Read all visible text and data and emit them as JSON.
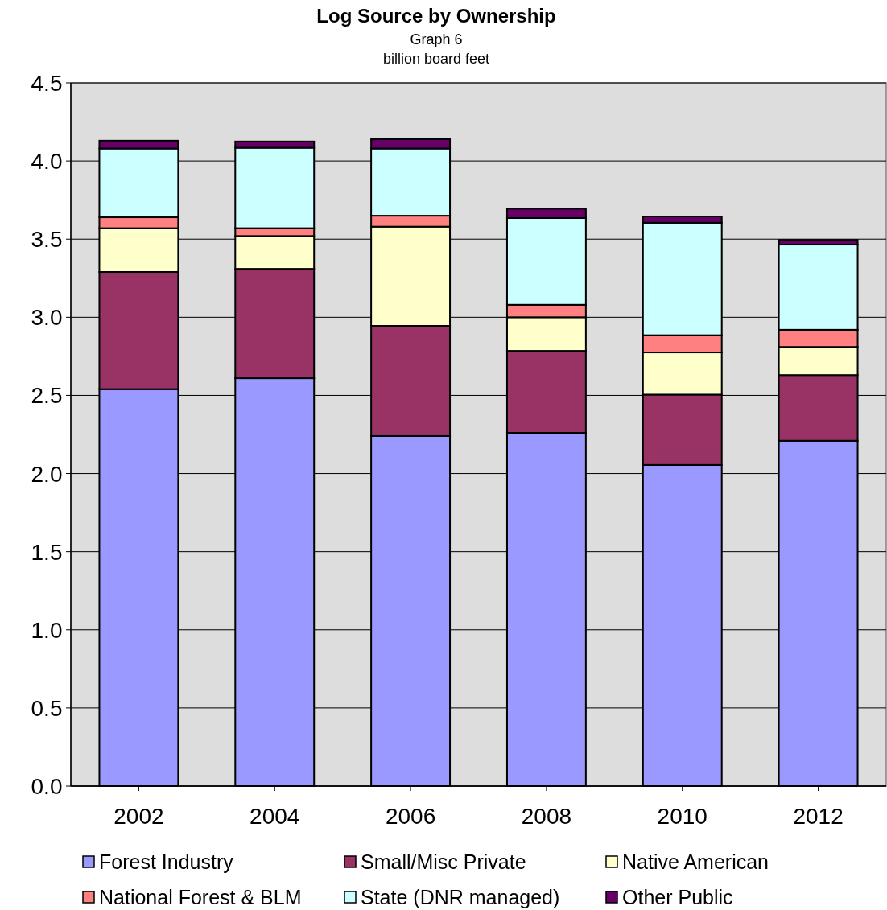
{
  "chart_data": {
    "type": "bar",
    "title": "Log Source by Ownership",
    "subtitle": "Graph 6",
    "ylabel": "billion board feet",
    "stacked": true,
    "grid": "y",
    "legend": "bottom",
    "categories": [
      "2002",
      "2004",
      "2006",
      "2008",
      "2010",
      "2012"
    ],
    "ylim": [
      0,
      4.5
    ],
    "yticks": [
      {
        "value": 0,
        "label": "0.0"
      },
      {
        "value": 0.5,
        "label": "0.5"
      },
      {
        "value": 1,
        "label": "1.0"
      },
      {
        "value": 1.5,
        "label": "1.5"
      },
      {
        "value": 2,
        "label": "2.0"
      },
      {
        "value": 2.5,
        "label": "2.5"
      },
      {
        "value": 3,
        "label": "3.0"
      },
      {
        "value": 3.5,
        "label": "3.5"
      },
      {
        "value": 4,
        "label": "4.0"
      },
      {
        "value": 4.5,
        "label": "4.5"
      }
    ],
    "series": [
      {
        "name": "Forest Industry",
        "color": "#9999ff",
        "values": [
          2.54,
          2.61,
          2.24,
          2.26,
          2.055,
          2.21
        ]
      },
      {
        "name": "Small/Misc Private",
        "color": "#993366",
        "values": [
          0.75,
          0.7,
          0.705,
          0.525,
          0.45,
          0.42
        ]
      },
      {
        "name": "Native American",
        "color": "#ffffcc",
        "values": [
          0.28,
          0.21,
          0.635,
          0.215,
          0.27,
          0.18
        ]
      },
      {
        "name": "National Forest & BLM",
        "color": "#ff8080",
        "values": [
          0.07,
          0.05,
          0.07,
          0.08,
          0.11,
          0.11
        ]
      },
      {
        "name": "State (DNR managed)",
        "color": "#ccffff",
        "values": [
          0.44,
          0.515,
          0.43,
          0.555,
          0.72,
          0.545
        ]
      },
      {
        "name": "Other Public",
        "color": "#660066",
        "values": [
          0.05,
          0.04,
          0.06,
          0.06,
          0.04,
          0.03
        ]
      }
    ]
  }
}
